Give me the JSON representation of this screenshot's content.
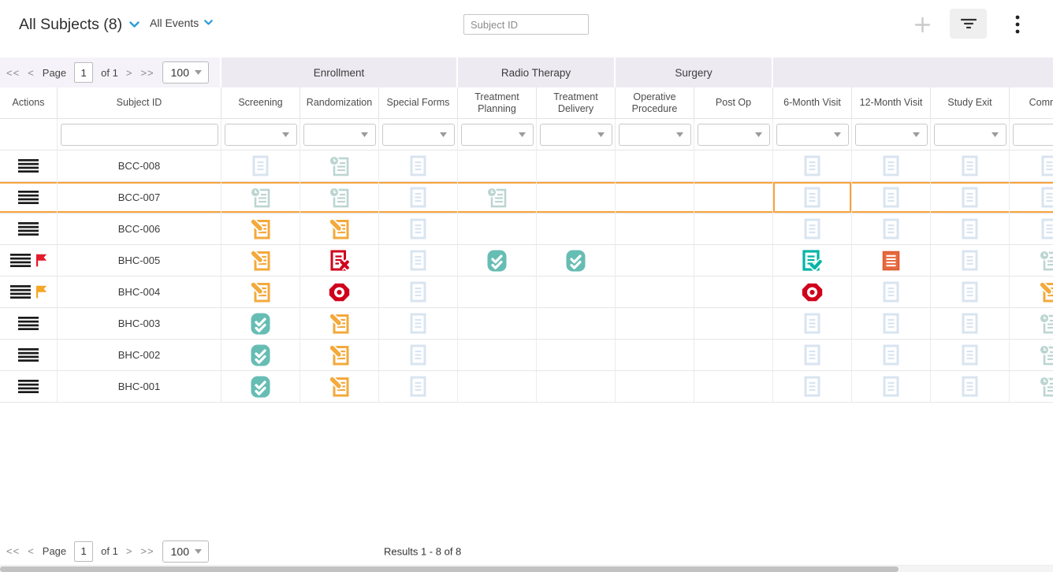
{
  "topbar": {
    "title": "All Subjects (8)",
    "events_dropdown": "All Events",
    "search_placeholder": "Subject ID",
    "icons": {
      "title_dropdown": "chevron-down-icon",
      "events_dropdown": "chevron-down-icon",
      "add": "plus-icon",
      "filter": "filter-icon",
      "menu": "kebab-menu-icon"
    }
  },
  "pager": {
    "first": "<<",
    "prev": "<",
    "page_label": "Page",
    "page_value": "1",
    "of_text": "of 1",
    "next": ">",
    "last": ">>",
    "page_size": "100",
    "size_arrow_icon": "dropdown-arrow-icon"
  },
  "footer": {
    "results": "Results 1 - 8 of 8"
  },
  "colors": {
    "highlight_orange": "#F8A33C",
    "band_bg": "#EDEAF2",
    "band_left_bg": "#F5F3F9",
    "chevron_blue": "#2B9CD8",
    "flag_red": "#E41B2C",
    "flag_orange": "#F5A623",
    "hamburger_black": "#1A1A1A",
    "scrollbar_thumb": "#C2C2C2"
  },
  "matrix": {
    "groups": [
      {
        "label": "Enrollment",
        "cols": 3
      },
      {
        "label": "Radio Therapy",
        "cols": 2
      },
      {
        "label": "Surgery",
        "cols": 2
      },
      {
        "label": "",
        "cols": 4
      }
    ],
    "columns": [
      "Actions",
      "Subject ID",
      "Screening",
      "Randomization",
      "Special Forms",
      "Treatment Planning",
      "Treatment Delivery",
      "Operative Procedure",
      "Post Op",
      "6-Month Visit",
      "12-Month Visit",
      "Study Exit",
      "Common"
    ],
    "statuses": {
      "not_scheduled": {
        "icon": "form-icon",
        "color": "#D9E4F0"
      },
      "scheduled": {
        "icon": "clock-form-icon",
        "color": "#BCD5D1"
      },
      "data_entry_started": {
        "icon": "pencil-form-icon",
        "color": "#F3A93B"
      },
      "completed": {
        "icon": "double-check-icon",
        "color": "#66BDB4"
      },
      "stopped": {
        "icon": "x-form-icon",
        "color": "#D0021B"
      },
      "skipped": {
        "icon": "stop-octagon-icon",
        "color": "#D0021B"
      },
      "signed": {
        "icon": "check-form-icon",
        "color": "#00B5A5"
      },
      "locked": {
        "icon": "solid-form-icon",
        "color": "#E7693F"
      }
    },
    "rows": [
      {
        "subject_id": "BCC-008",
        "flag": "",
        "highlight": false,
        "outlined_cell": null,
        "cells": [
          "not_scheduled",
          "scheduled",
          "not_scheduled",
          "",
          "",
          "",
          "",
          "not_scheduled",
          "not_scheduled",
          "not_scheduled",
          "not_scheduled"
        ]
      },
      {
        "subject_id": "BCC-007",
        "flag": "",
        "highlight": true,
        "outlined_cell": 7,
        "cells": [
          "scheduled",
          "scheduled",
          "not_scheduled",
          "scheduled",
          "",
          "",
          "",
          "not_scheduled",
          "not_scheduled",
          "not_scheduled",
          "not_scheduled"
        ]
      },
      {
        "subject_id": "BCC-006",
        "flag": "",
        "highlight": false,
        "outlined_cell": null,
        "cells": [
          "data_entry_started",
          "data_entry_started",
          "not_scheduled",
          "",
          "",
          "",
          "",
          "not_scheduled",
          "not_scheduled",
          "not_scheduled",
          "not_scheduled"
        ]
      },
      {
        "subject_id": "BHC-005",
        "flag": "red",
        "highlight": false,
        "outlined_cell": null,
        "cells": [
          "data_entry_started",
          "stopped",
          "not_scheduled",
          "completed",
          "completed",
          "",
          "",
          "signed",
          "locked",
          "not_scheduled",
          "scheduled"
        ]
      },
      {
        "subject_id": "BHC-004",
        "flag": "orange",
        "highlight": false,
        "outlined_cell": null,
        "cells": [
          "data_entry_started",
          "skipped",
          "not_scheduled",
          "",
          "",
          "",
          "",
          "skipped",
          "not_scheduled",
          "not_scheduled",
          "data_entry_started"
        ]
      },
      {
        "subject_id": "BHC-003",
        "flag": "",
        "highlight": false,
        "outlined_cell": null,
        "cells": [
          "completed",
          "data_entry_started",
          "not_scheduled",
          "",
          "",
          "",
          "",
          "not_scheduled",
          "not_scheduled",
          "not_scheduled",
          "scheduled"
        ]
      },
      {
        "subject_id": "BHC-002",
        "flag": "",
        "highlight": false,
        "outlined_cell": null,
        "cells": [
          "completed",
          "data_entry_started",
          "not_scheduled",
          "",
          "",
          "",
          "",
          "not_scheduled",
          "not_scheduled",
          "not_scheduled",
          "scheduled"
        ]
      },
      {
        "subject_id": "BHC-001",
        "flag": "",
        "highlight": false,
        "outlined_cell": null,
        "cells": [
          "completed",
          "data_entry_started",
          "not_scheduled",
          "",
          "",
          "",
          "",
          "not_scheduled",
          "not_scheduled",
          "not_scheduled",
          "scheduled"
        ]
      }
    ]
  }
}
